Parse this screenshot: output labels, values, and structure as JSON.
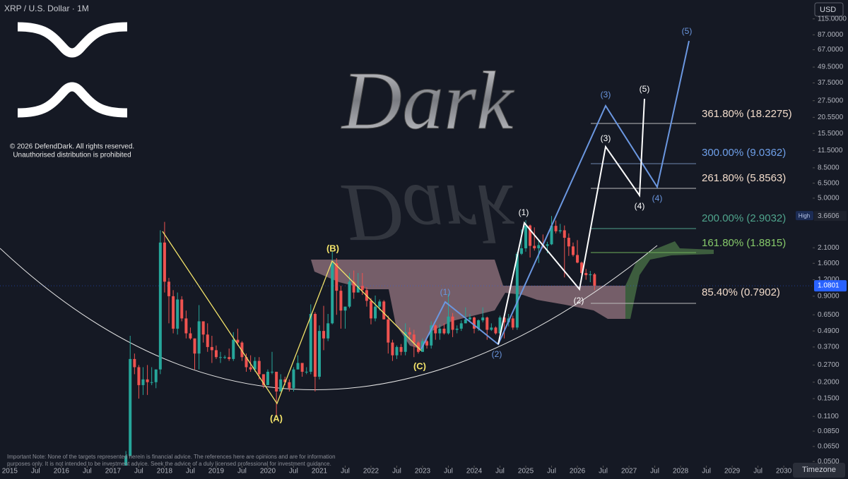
{
  "chart_data": {
    "type": "candlestick",
    "title": "XRP / U.S. Dollar · 1M",
    "currency": "USD",
    "watermark": "Dark",
    "copyright": [
      "© 2026 DefendDark. All rights reserved.",
      "Unauthorised distribution is prohibited"
    ],
    "note": [
      "Important Note: None of the targets represented herein is financial advice. The references here are opinions and are for information",
      "purposes only. It is not intended to be investment advice. Seek the advice of a duly licensed professional for investment guidance."
    ],
    "timezone_button": "Timezone",
    "log_scale": true,
    "grid": false,
    "up_color": "#26a69a",
    "down_color": "#ef5350",
    "xlim": [
      2014.81,
      2030.56
    ],
    "ylim": [
      0.0465,
      160
    ],
    "xticks": [
      2015,
      {
        "value": 2015.5,
        "label": "Jul"
      },
      2016,
      {
        "value": 2016.5,
        "label": "Jul"
      },
      2017,
      {
        "value": 2017.5,
        "label": "Jul"
      },
      2018,
      {
        "value": 2018.5,
        "label": "Jul"
      },
      2019,
      {
        "value": 2019.5,
        "label": "Jul"
      },
      2020,
      {
        "value": 2020.5,
        "label": "Jul"
      },
      2021,
      {
        "value": 2021.5,
        "label": "Jul"
      },
      2022,
      {
        "value": 2022.5,
        "label": "Jul"
      },
      2023,
      {
        "value": 2023.5,
        "label": "Jul"
      },
      2024,
      {
        "value": 2024.5,
        "label": "Jul"
      },
      2025,
      {
        "value": 2025.5,
        "label": "Jul"
      },
      2026,
      {
        "value": 2026.5,
        "label": "Jul"
      },
      2027,
      {
        "value": 2027.5,
        "label": "Jul"
      },
      2028,
      {
        "value": 2028.5,
        "label": "Jul"
      },
      2029,
      {
        "value": 2029.5,
        "label": "Jul"
      },
      2030
    ],
    "yticks": [
      {
        "value": 115,
        "label": "115.0000"
      },
      {
        "value": 87,
        "label": "87.0000"
      },
      {
        "value": 67,
        "label": "67.0000"
      },
      {
        "value": 49.5,
        "label": "49.5000"
      },
      {
        "value": 37.5,
        "label": "37.5000"
      },
      {
        "value": 27.5,
        "label": "27.5000"
      },
      {
        "value": 20.55,
        "label": "20.5500"
      },
      {
        "value": 15.5,
        "label": "15.5000"
      },
      {
        "value": 11.5,
        "label": "11.5000"
      },
      {
        "value": 8.5,
        "label": "8.5000"
      },
      {
        "value": 6.5,
        "label": "6.5000"
      },
      {
        "value": 5,
        "label": "5.0000"
      },
      {
        "value": 2.1,
        "label": "2.1000"
      },
      {
        "value": 1.6,
        "label": "1.6000"
      },
      {
        "value": 1.2,
        "label": "1.2000"
      },
      {
        "value": 0.9,
        "label": "0.9000"
      },
      {
        "value": 0.65,
        "label": "0.6500"
      },
      {
        "value": 0.49,
        "label": "0.4900"
      },
      {
        "value": 0.37,
        "label": "0.3700"
      },
      {
        "value": 0.27,
        "label": "0.2700"
      },
      {
        "value": 0.2,
        "label": "0.2000"
      },
      {
        "value": 0.15,
        "label": "0.1500"
      },
      {
        "value": 0.11,
        "label": "0.1100"
      },
      {
        "value": 0.085,
        "label": "0.0850"
      },
      {
        "value": 0.065,
        "label": "0.0650"
      },
      {
        "value": 0.05,
        "label": "0.0500"
      }
    ],
    "high_marker": {
      "label": "High",
      "value": 3.6606
    },
    "last_price": 1.0801,
    "x": [
      2017.25,
      2017.333,
      2017.417,
      2017.5,
      2017.583,
      2017.667,
      2017.75,
      2017.833,
      2017.917,
      2018,
      2018.083,
      2018.167,
      2018.25,
      2018.333,
      2018.417,
      2018.5,
      2018.583,
      2018.667,
      2018.75,
      2018.833,
      2018.917,
      2019,
      2019.083,
      2019.167,
      2019.25,
      2019.333,
      2019.417,
      2019.5,
      2019.583,
      2019.667,
      2019.75,
      2019.833,
      2019.917,
      2020,
      2020.083,
      2020.167,
      2020.25,
      2020.333,
      2020.417,
      2020.5,
      2020.583,
      2020.667,
      2020.75,
      2020.833,
      2020.917,
      2021,
      2021.083,
      2021.167,
      2021.25,
      2021.333,
      2021.417,
      2021.5,
      2021.583,
      2021.667,
      2021.75,
      2021.833,
      2021.917,
      2022,
      2022.083,
      2022.167,
      2022.25,
      2022.333,
      2022.417,
      2022.5,
      2022.583,
      2022.667,
      2022.75,
      2022.833,
      2022.917,
      2023,
      2023.083,
      2023.167,
      2023.25,
      2023.333,
      2023.417,
      2023.5,
      2023.583,
      2023.667,
      2023.75,
      2023.833,
      2023.917,
      2024,
      2024.083,
      2024.167,
      2024.25,
      2024.333,
      2024.417,
      2024.5,
      2024.583,
      2024.667,
      2024.75,
      2024.833,
      2024.917,
      2025,
      2025.083,
      2025.167,
      2025.25,
      2025.333,
      2025.417,
      2025.5,
      2025.583,
      2025.667,
      2025.75,
      2025.833,
      2025.917,
      2026,
      2026.083,
      2026.167,
      2026.25,
      2026.333
    ],
    "open": [
      0.036,
      0.055,
      0.3,
      0.26,
      0.19,
      0.21,
      0.2,
      0.2,
      0.25,
      2.3,
      1.16,
      0.9,
      0.51,
      0.85,
      0.61,
      0.47,
      0.43,
      0.33,
      0.58,
      0.46,
      0.37,
      0.35,
      0.31,
      0.31,
      0.31,
      0.3,
      0.42,
      0.4,
      0.31,
      0.26,
      0.25,
      0.29,
      0.23,
      0.19,
      0.24,
      0.24,
      0.17,
      0.21,
      0.2,
      0.18,
      0.25,
      0.28,
      0.24,
      0.24,
      0.66,
      0.22,
      0.49,
      0.43,
      0.56,
      1.6,
      0.99,
      0.7,
      0.75,
      1.16,
      0.96,
      1.08,
      1.0,
      0.83,
      0.61,
      0.75,
      0.82,
      0.6,
      0.4,
      0.32,
      0.37,
      0.34,
      0.48,
      0.46,
      0.4,
      0.34,
      0.41,
      0.38,
      0.54,
      0.47,
      0.51,
      0.47,
      0.63,
      0.5,
      0.51,
      0.56,
      0.6,
      0.62,
      0.51,
      0.59,
      0.62,
      0.5,
      0.52,
      0.47,
      0.62,
      0.57,
      0.61,
      0.52,
      1.89,
      2.08,
      3.1,
      2.17,
      2.08,
      2.2,
      2.17,
      2.23,
      3.08,
      2.8,
      2.85,
      2.5,
      2.15,
      1.85,
      1.62,
      1.35,
      1.3,
      1.32
    ],
    "high": [
      0.06,
      0.45,
      0.33,
      0.27,
      0.26,
      0.27,
      0.26,
      0.25,
      2.85,
      3.3,
      1.24,
      1.0,
      0.96,
      0.9,
      0.7,
      0.52,
      0.43,
      0.77,
      0.58,
      0.56,
      0.45,
      0.38,
      0.34,
      0.32,
      0.36,
      0.48,
      0.51,
      0.41,
      0.33,
      0.32,
      0.31,
      0.31,
      0.23,
      0.25,
      0.34,
      0.24,
      0.23,
      0.22,
      0.21,
      0.26,
      0.32,
      0.28,
      0.26,
      0.78,
      0.68,
      0.54,
      0.76,
      0.66,
      1.96,
      1.75,
      1.08,
      0.75,
      1.35,
      1.41,
      1.35,
      1.35,
      1.05,
      0.87,
      0.91,
      0.85,
      0.84,
      0.64,
      0.42,
      0.38,
      0.39,
      0.56,
      0.52,
      0.5,
      0.41,
      0.43,
      0.42,
      0.58,
      0.55,
      0.55,
      0.56,
      0.94,
      0.67,
      0.54,
      0.59,
      0.74,
      0.66,
      0.63,
      0.6,
      0.74,
      0.63,
      0.56,
      0.53,
      0.64,
      0.64,
      0.66,
      0.64,
      1.95,
      2.9,
      3.4,
      3.15,
      3.0,
      2.35,
      2.65,
      2.33,
      3.66,
      3.38,
      3.19,
      3.1,
      2.7,
      2.3,
      2.4,
      1.65,
      1.45,
      1.4,
      1.35
    ],
    "low": [
      0.03,
      0.055,
      0.23,
      0.15,
      0.16,
      0.16,
      0.19,
      0.18,
      0.23,
      0.96,
      0.56,
      0.47,
      0.46,
      0.58,
      0.43,
      0.42,
      0.25,
      0.25,
      0.4,
      0.34,
      0.28,
      0.3,
      0.28,
      0.3,
      0.29,
      0.29,
      0.38,
      0.29,
      0.24,
      0.24,
      0.24,
      0.21,
      0.18,
      0.19,
      0.23,
      0.11,
      0.17,
      0.19,
      0.17,
      0.17,
      0.25,
      0.22,
      0.23,
      0.23,
      0.17,
      0.21,
      0.35,
      0.41,
      0.55,
      0.65,
      0.51,
      0.51,
      0.73,
      0.86,
      0.96,
      0.92,
      0.75,
      0.55,
      0.58,
      0.7,
      0.6,
      0.33,
      0.29,
      0.3,
      0.32,
      0.32,
      0.42,
      0.31,
      0.33,
      0.34,
      0.36,
      0.36,
      0.42,
      0.42,
      0.46,
      0.46,
      0.44,
      0.47,
      0.49,
      0.56,
      0.57,
      0.47,
      0.49,
      0.57,
      0.42,
      0.49,
      0.46,
      0.43,
      0.43,
      0.53,
      0.5,
      0.5,
      1.85,
      1.96,
      1.77,
      2.0,
      1.61,
      2.07,
      1.91,
      2.2,
      2.7,
      2.7,
      1.25,
      1.82,
      1.8,
      1.6,
      1.3,
      1.2,
      1.15,
      1.0
    ],
    "close": [
      0.055,
      0.3,
      0.26,
      0.19,
      0.21,
      0.2,
      0.2,
      0.25,
      2.3,
      1.16,
      0.9,
      0.51,
      0.85,
      0.61,
      0.47,
      0.43,
      0.33,
      0.58,
      0.46,
      0.37,
      0.35,
      0.31,
      0.31,
      0.31,
      0.3,
      0.42,
      0.4,
      0.31,
      0.26,
      0.25,
      0.29,
      0.23,
      0.19,
      0.24,
      0.24,
      0.17,
      0.21,
      0.2,
      0.18,
      0.25,
      0.28,
      0.24,
      0.24,
      0.66,
      0.22,
      0.49,
      0.43,
      0.56,
      1.6,
      0.99,
      0.7,
      0.75,
      1.16,
      0.96,
      1.08,
      1.0,
      0.83,
      0.61,
      0.75,
      0.82,
      0.6,
      0.4,
      0.32,
      0.37,
      0.34,
      0.48,
      0.46,
      0.4,
      0.34,
      0.41,
      0.38,
      0.54,
      0.47,
      0.51,
      0.47,
      0.63,
      0.5,
      0.51,
      0.56,
      0.6,
      0.62,
      0.51,
      0.59,
      0.62,
      0.5,
      0.52,
      0.47,
      0.62,
      0.57,
      0.61,
      0.52,
      1.89,
      2.08,
      3.1,
      2.17,
      2.08,
      2.2,
      2.17,
      2.23,
      3.08,
      2.8,
      2.85,
      2.5,
      2.15,
      1.85,
      1.62,
      1.35,
      1.3,
      1.32,
      1.0801
    ],
    "fib_levels": [
      {
        "label": "361.80% (18.2275)",
        "color": "#f2dccb"
      },
      {
        "label": "300.00% (9.0362)",
        "color": "#6fa0ea"
      },
      {
        "label": "261.80% (5.8563)",
        "color": "#f2dccb"
      },
      {
        "label": "200.00% (2.9032)",
        "color": "#4fa48c"
      },
      {
        "label": "161.80% (1.8815)",
        "color": "#86c96a"
      },
      {
        "label": "85.40% (0.7902)",
        "color": "#f2dccb"
      }
    ],
    "wave_labels": {
      "abc": [
        "(A)",
        "(B)",
        "(C)"
      ],
      "blue": [
        "(1)",
        "(2)",
        "(3)",
        "(4)",
        "(5)"
      ],
      "white": [
        "(1)",
        "(2)",
        "(3)",
        "(4)",
        "(5)"
      ]
    }
  }
}
